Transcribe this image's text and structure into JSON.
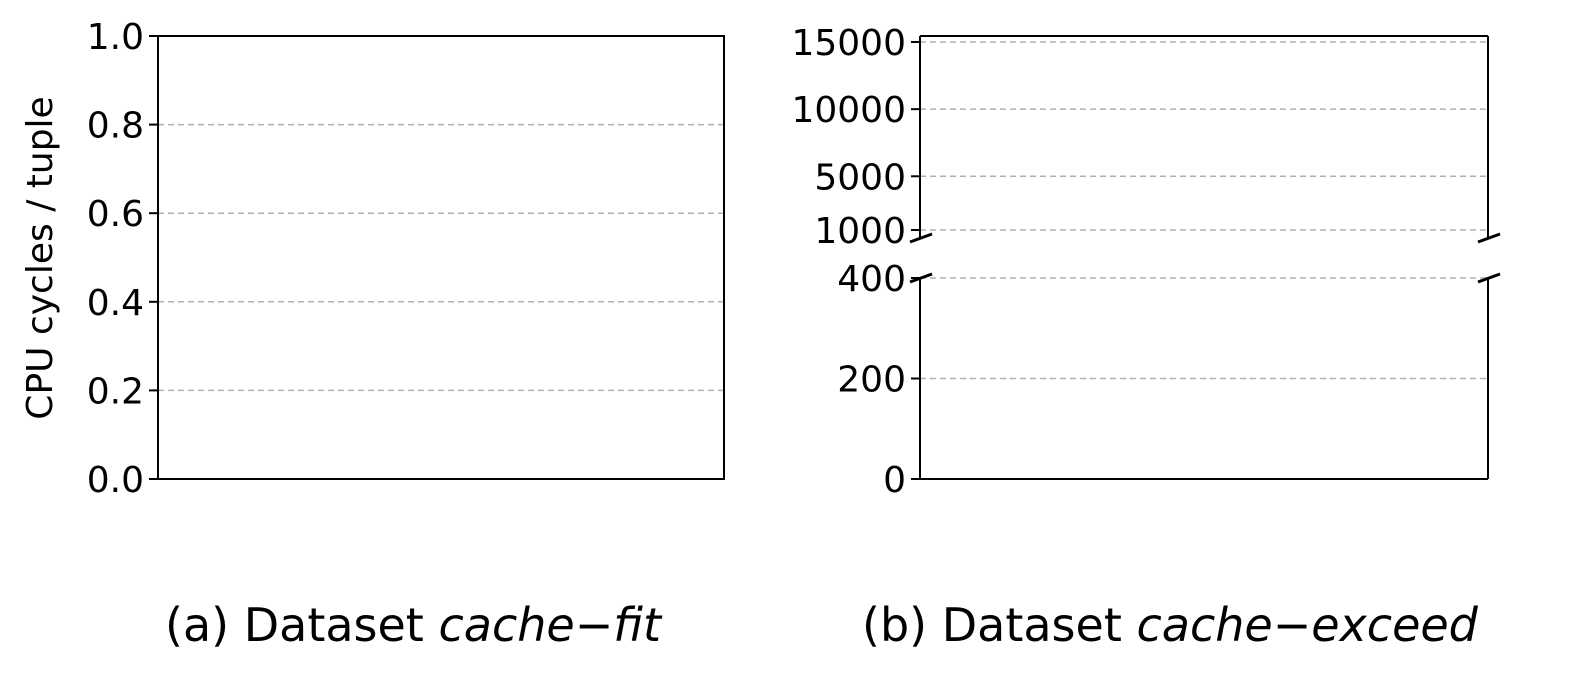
{
  "chart_data": [
    {
      "type": "bar",
      "panel": "(a)",
      "caption_prefix": "(a) Dataset",
      "caption_dataset": "cache−fit",
      "ylabel": "CPU cycles / tuple",
      "ylim": [
        0.0,
        1.0
      ],
      "yticks": [
        "0.0",
        "0.2",
        "0.4",
        "0.6",
        "0.8",
        "1.0"
      ],
      "grid": true,
      "series": [],
      "categories": []
    },
    {
      "type": "bar",
      "panel": "(b)",
      "caption_prefix": "(b) Dataset",
      "caption_dataset": "cache−exceed",
      "broken_axis": true,
      "lower_ylim": [
        0,
        400
      ],
      "lower_yticks": [
        "0",
        "200",
        "400"
      ],
      "upper_ylim": [
        1000,
        15000
      ],
      "upper_yticks": [
        "1000",
        "5000",
        "10000",
        "15000"
      ],
      "grid": true,
      "series": [],
      "categories": []
    }
  ],
  "colors": {
    "axis": "#000000",
    "grid": "#b0b0b0"
  }
}
